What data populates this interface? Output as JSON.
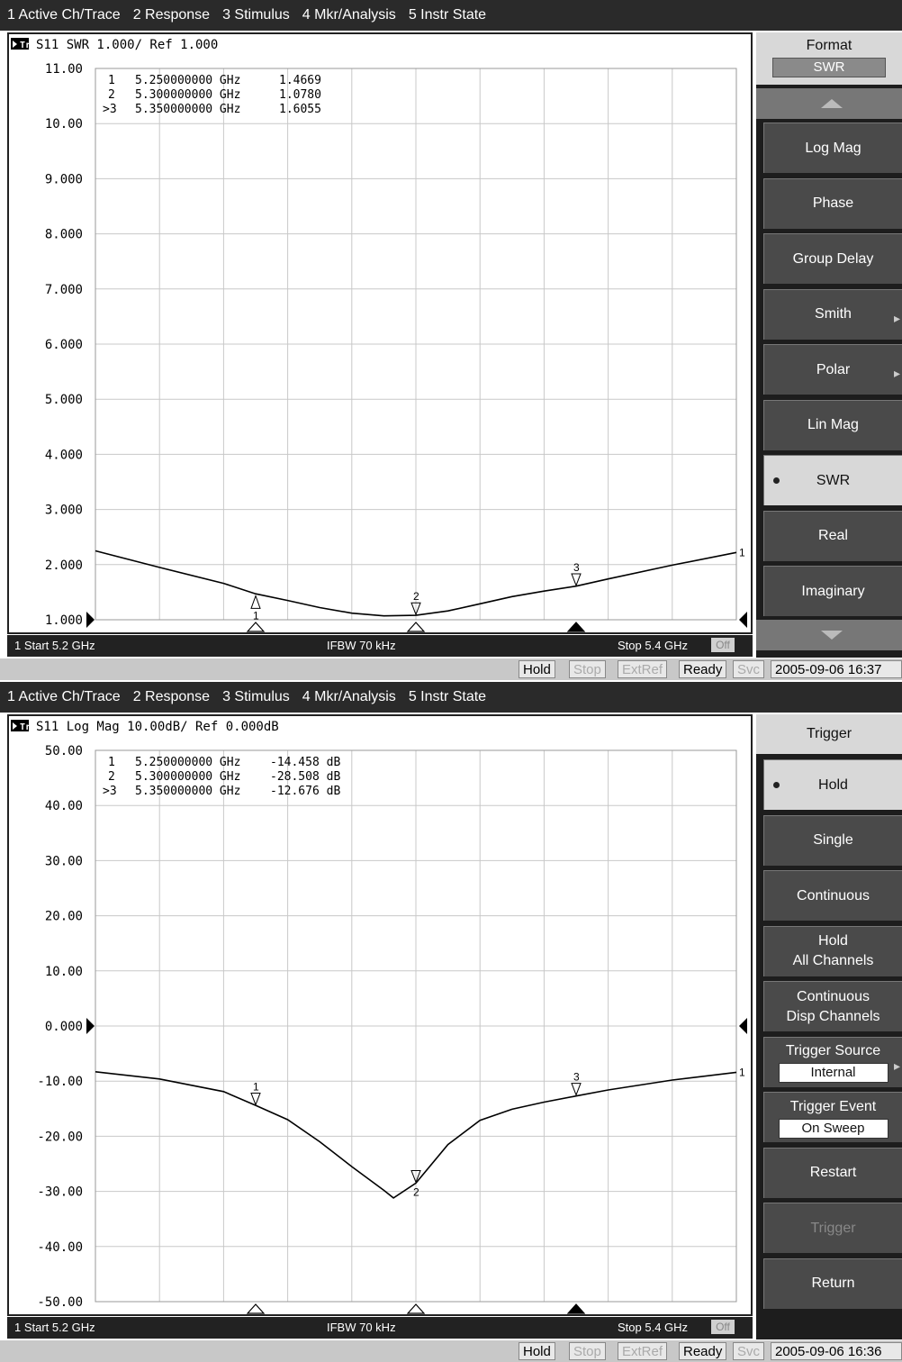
{
  "menu": [
    "1 Active Ch/Trace",
    "2 Response",
    "3 Stimulus",
    "4 Mkr/Analysis",
    "5 Instr State"
  ],
  "colors": {
    "background": "#ffffff",
    "menubar": "#2a2a2a",
    "softkey": "#4a4a4a",
    "softkey_active": "#d8d8d8",
    "trace": "#000000"
  },
  "screens": [
    {
      "trace_label": "Tr1",
      "trace_title": "S11  SWR 1.000/ Ref 1.000",
      "markers": [
        {
          "label": "1",
          "freq": "5.250000000 GHz",
          "value": "1.4669"
        },
        {
          "label": "2",
          "freq": "5.300000000 GHz",
          "value": "1.0780"
        },
        {
          "label": ">3",
          "freq": "5.350000000 GHz",
          "value": "1.6055"
        }
      ],
      "start": "1 Start 5.2 GHz",
      "ifbw": "IFBW 70 kHz",
      "stop": "Stop 5.4 GHz",
      "off_label": "Off",
      "status": {
        "hold": "Hold",
        "stop": "Stop",
        "extref": "ExtRef",
        "ready": "Ready",
        "svc": "Svc",
        "datetime": "2005-09-06 16:37"
      },
      "softkeys": {
        "header": "Format",
        "header_value": "SWR",
        "show_arrows": true,
        "buttons": [
          {
            "label": "Log Mag"
          },
          {
            "label": "Phase"
          },
          {
            "label": "Group Delay"
          },
          {
            "label": "Smith",
            "more": true
          },
          {
            "label": "Polar",
            "more": true
          },
          {
            "label": "Lin Mag"
          },
          {
            "label": "SWR",
            "active": true
          },
          {
            "label": "Real"
          },
          {
            "label": "Imaginary"
          }
        ]
      }
    },
    {
      "trace_label": "Tr1",
      "trace_title": "S11  Log Mag 10.00dB/ Ref 0.000dB",
      "markers": [
        {
          "label": "1",
          "freq": "5.250000000 GHz",
          "value": "-14.458 dB"
        },
        {
          "label": "2",
          "freq": "5.300000000 GHz",
          "value": "-28.508 dB"
        },
        {
          "label": ">3",
          "freq": "5.350000000 GHz",
          "value": "-12.676 dB"
        }
      ],
      "start": "1 Start 5.2 GHz",
      "ifbw": "IFBW 70 kHz",
      "stop": "Stop 5.4 GHz",
      "off_label": "Off",
      "status": {
        "hold": "Hold",
        "stop": "Stop",
        "extref": "ExtRef",
        "ready": "Ready",
        "svc": "Svc",
        "datetime": "2005-09-06 16:36"
      },
      "softkeys": {
        "header": "Trigger",
        "show_arrows": false,
        "buttons": [
          {
            "label": "Hold",
            "active": true
          },
          {
            "label": "Single"
          },
          {
            "label": "Continuous"
          },
          {
            "label": "Hold",
            "label2": "All Channels"
          },
          {
            "label": "Continuous",
            "label2": "Disp Channels"
          },
          {
            "label": "Trigger Source",
            "sub": "Internal",
            "more": true
          },
          {
            "label": "Trigger Event",
            "sub": "On Sweep"
          },
          {
            "label": "Restart"
          },
          {
            "label": "Trigger",
            "disabled": true
          },
          {
            "label": "Return"
          }
        ]
      }
    }
  ],
  "chart_data": [
    {
      "type": "line",
      "x_range": [
        5.2,
        5.4
      ],
      "ylim": [
        1.0,
        11.0
      ],
      "yticks": [
        "11.00",
        "10.00",
        "9.000",
        "8.000",
        "7.000",
        "6.000",
        "5.000",
        "4.000",
        "3.000",
        "2.000",
        "1.000"
      ],
      "ref_level": 1.0,
      "grid": true,
      "series": [
        {
          "x": [
            5.2,
            5.22,
            5.24,
            5.25,
            5.26,
            5.27,
            5.28,
            5.29,
            5.3,
            5.31,
            5.32,
            5.33,
            5.34,
            5.35,
            5.36,
            5.38,
            5.4
          ],
          "y": [
            2.25,
            1.95,
            1.66,
            1.47,
            1.35,
            1.22,
            1.12,
            1.07,
            1.08,
            1.16,
            1.29,
            1.42,
            1.52,
            1.61,
            1.74,
            1.99,
            2.22
          ]
        }
      ],
      "markers": [
        {
          "label": "1",
          "x": 5.25,
          "y": 1.4669
        },
        {
          "label": "2",
          "x": 5.3,
          "y": 1.078
        },
        {
          "label": "3",
          "x": 5.35,
          "y": 1.6055
        }
      ]
    },
    {
      "type": "line",
      "x_range": [
        5.2,
        5.4
      ],
      "ylim": [
        -50.0,
        50.0
      ],
      "yticks": [
        "50.00",
        "40.00",
        "30.00",
        "20.00",
        "10.00",
        "0.000",
        "-10.00",
        "-20.00",
        "-30.00",
        "-40.00",
        "-50.00"
      ],
      "ref_level": 0.0,
      "grid": true,
      "series": [
        {
          "x": [
            5.2,
            5.22,
            5.24,
            5.25,
            5.26,
            5.27,
            5.28,
            5.29,
            5.293,
            5.3,
            5.31,
            5.32,
            5.33,
            5.34,
            5.35,
            5.36,
            5.38,
            5.4
          ],
          "y": [
            -8.3,
            -9.6,
            -11.9,
            -14.4,
            -17.0,
            -21.0,
            -25.5,
            -29.8,
            -31.2,
            -28.5,
            -21.5,
            -17.1,
            -15.1,
            -13.8,
            -12.7,
            -11.6,
            -9.8,
            -8.4
          ]
        }
      ],
      "markers": [
        {
          "label": "1",
          "x": 5.25,
          "y": -14.458
        },
        {
          "label": "2",
          "x": 5.3,
          "y": -28.508
        },
        {
          "label": "3",
          "x": 5.35,
          "y": -12.676
        }
      ]
    }
  ]
}
